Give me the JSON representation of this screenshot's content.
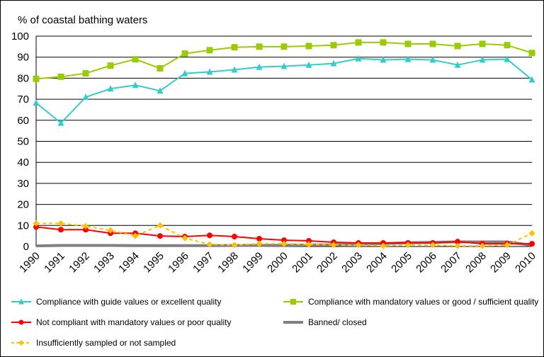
{
  "chart_data": {
    "type": "line",
    "title": "% of coastal bathing waters",
    "x": [
      "1990",
      "1991",
      "1992",
      "1993",
      "1994",
      "1995",
      "1996",
      "1997",
      "1998",
      "1999",
      "2000",
      "2001",
      "2002",
      "2003",
      "2004",
      "2005",
      "2006",
      "2007",
      "2008",
      "2009",
      "2010"
    ],
    "ylim": [
      0,
      100
    ],
    "yticks": [
      0,
      10,
      20,
      30,
      40,
      50,
      60,
      70,
      80,
      90,
      100
    ],
    "grid": true,
    "legend_position": "bottom",
    "series": [
      {
        "name": "Compliance with guide values or excellent quality",
        "color": "#33CCCC",
        "marker": "triangle",
        "dashed": false,
        "values": [
          68.3,
          58.7,
          71.0,
          75.0,
          76.7,
          74.0,
          82.3,
          83.0,
          84.0,
          85.3,
          85.7,
          86.3,
          87.0,
          89.3,
          88.7,
          89.0,
          88.7,
          86.3,
          88.7,
          89.0,
          79.3
        ]
      },
      {
        "name": "Compliance with mandatory values or good / sufficient quality",
        "color": "#99CC00",
        "marker": "square",
        "dashed": false,
        "values": [
          79.7,
          80.7,
          82.3,
          86.0,
          89.0,
          84.7,
          91.7,
          93.3,
          94.7,
          95.0,
          95.0,
          95.3,
          95.7,
          97.0,
          97.0,
          96.3,
          96.3,
          95.3,
          96.3,
          95.7,
          92.0
        ]
      },
      {
        "name": "Not compliant with mandatory values or poor quality",
        "color": "#FF0000",
        "marker": "circle",
        "dashed": false,
        "values": [
          9.3,
          8.0,
          8.0,
          6.3,
          6.3,
          5.0,
          4.7,
          5.3,
          4.7,
          3.7,
          3.0,
          2.7,
          2.0,
          1.7,
          1.7,
          1.7,
          1.7,
          2.3,
          1.3,
          1.3,
          1.3
        ]
      },
      {
        "name": "Banned/ closed",
        "color": "#808080",
        "marker": "none",
        "dashed": false,
        "values": [
          0.3,
          0.5,
          0.5,
          0.5,
          0.4,
          0.4,
          0.4,
          0.4,
          0.5,
          0.5,
          0.6,
          0.7,
          0.8,
          1.2,
          1.4,
          1.8,
          2.0,
          2.2,
          2.2,
          2.2,
          0.6
        ]
      },
      {
        "name": "Insufficiently sampled or not sampled",
        "color": "#FFC000",
        "marker": "diamond",
        "dashed": true,
        "values": [
          11.0,
          11.0,
          9.7,
          7.7,
          5.0,
          10.0,
          4.0,
          1.0,
          0.7,
          1.3,
          1.3,
          1.0,
          0.7,
          0.7,
          0.3,
          0.7,
          0.7,
          0.3,
          0.3,
          0.7,
          6.3
        ]
      }
    ]
  }
}
